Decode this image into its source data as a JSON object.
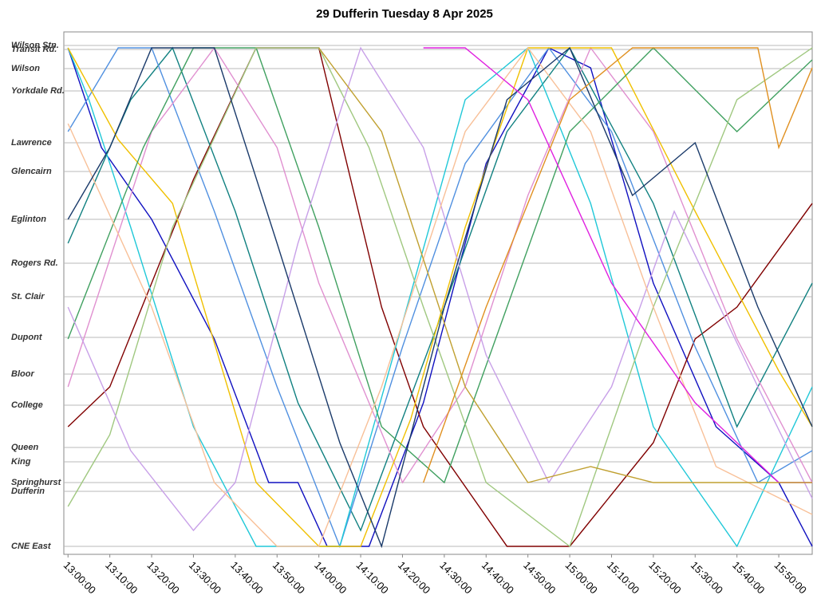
{
  "chart_data": {
    "type": "line",
    "title": "29 Dufferin Tuesday 8 Apr 2025",
    "xlim": [
      -1,
      178
    ],
    "ylim": [
      -10,
      645
    ],
    "grid": true,
    "xticks": [
      {
        "value": 0,
        "label": "13:00:00"
      },
      {
        "value": 10,
        "label": "13:10:00"
      },
      {
        "value": 20,
        "label": "13:20:00"
      },
      {
        "value": 30,
        "label": "13:30:00"
      },
      {
        "value": 40,
        "label": "13:40:00"
      },
      {
        "value": 50,
        "label": "13:50:00"
      },
      {
        "value": 60,
        "label": "14:00:00"
      },
      {
        "value": 70,
        "label": "14:10:00"
      },
      {
        "value": 80,
        "label": "14:20:00"
      },
      {
        "value": 90,
        "label": "14:30:00"
      },
      {
        "value": 100,
        "label": "14:40:00"
      },
      {
        "value": 110,
        "label": "14:50:00"
      },
      {
        "value": 120,
        "label": "15:00:00"
      },
      {
        "value": 130,
        "label": "15:10:00"
      },
      {
        "value": 140,
        "label": "15:20:00"
      },
      {
        "value": 150,
        "label": "15:30:00"
      },
      {
        "value": 160,
        "label": "15:40:00"
      },
      {
        "value": 170,
        "label": "15:50:00"
      }
    ],
    "yticks": [
      {
        "value": 628,
        "label": "Wilson Stn."
      },
      {
        "value": 623,
        "label": "Transit Rd."
      },
      {
        "value": 599,
        "label": "Wilson"
      },
      {
        "value": 571,
        "label": "Yorkdale Rd."
      },
      {
        "value": 506,
        "label": "Lawrence"
      },
      {
        "value": 470,
        "label": "Glencairn"
      },
      {
        "value": 410,
        "label": "Eglinton"
      },
      {
        "value": 355,
        "label": "Rogers Rd."
      },
      {
        "value": 313,
        "label": "St. Clair"
      },
      {
        "value": 262,
        "label": "Dupont"
      },
      {
        "value": 216,
        "label": "Bloor"
      },
      {
        "value": 177,
        "label": "College"
      },
      {
        "value": 124,
        "label": "Queen"
      },
      {
        "value": 106,
        "label": "King"
      },
      {
        "value": 80,
        "label": "Springhurst"
      },
      {
        "value": 69,
        "label": "Dufferin"
      },
      {
        "value": 0,
        "label": "CNE East"
      }
    ],
    "series": [
      {
        "color": "#1010c0",
        "x": [
          0,
          8,
          20,
          35,
          48,
          55,
          62,
          72,
          85,
          100,
          115,
          125,
          140,
          155,
          170,
          178
        ],
        "values": [
          625,
          500,
          410,
          260,
          80,
          80,
          0,
          0,
          180,
          480,
          625,
          600,
          330,
          150,
          80,
          0
        ]
      },
      {
        "color": "#800000",
        "x": [
          0,
          10,
          30,
          45,
          60,
          75,
          85,
          105,
          120,
          140,
          150,
          160,
          178
        ],
        "values": [
          150,
          200,
          460,
          625,
          625,
          300,
          150,
          0,
          0,
          130,
          260,
          300,
          430
        ]
      },
      {
        "color": "#108080",
        "x": [
          0,
          15,
          25,
          40,
          55,
          70,
          90,
          105,
          120,
          140,
          160,
          178
        ],
        "values": [
          380,
          560,
          625,
          420,
          180,
          20,
          300,
          520,
          625,
          430,
          150,
          330
        ]
      },
      {
        "color": "#5090e0",
        "x": [
          0,
          12,
          20,
          35,
          50,
          65,
          80,
          95,
          115,
          130,
          150,
          165,
          178
        ],
        "values": [
          520,
          625,
          625,
          420,
          200,
          0,
          250,
          480,
          625,
          520,
          250,
          80,
          120
        ]
      },
      {
        "color": "#20c8d8",
        "x": [
          0,
          5,
          15,
          30,
          45,
          65,
          80,
          95,
          110,
          125,
          140,
          160,
          178
        ],
        "values": [
          625,
          560,
          400,
          150,
          0,
          0,
          280,
          560,
          625,
          430,
          150,
          0,
          200
        ]
      },
      {
        "color": "#e090d0",
        "x": [
          0,
          20,
          35,
          50,
          60,
          80,
          95,
          110,
          125,
          140,
          160,
          178
        ],
        "values": [
          200,
          520,
          625,
          500,
          330,
          80,
          200,
          440,
          625,
          520,
          260,
          80
        ]
      },
      {
        "color": "#f0c000",
        "x": [
          0,
          12,
          25,
          45,
          60,
          70,
          82,
          95,
          110,
          130,
          150,
          170,
          178
        ],
        "values": [
          625,
          510,
          430,
          80,
          0,
          0,
          160,
          400,
          625,
          625,
          420,
          220,
          150
        ]
      },
      {
        "color": "#40a060",
        "x": [
          0,
          18,
          30,
          45,
          60,
          75,
          90,
          105,
          120,
          140,
          160,
          178
        ],
        "values": [
          260,
          500,
          625,
          625,
          400,
          150,
          80,
          300,
          520,
          625,
          520,
          610
        ]
      },
      {
        "color": "#a0c880",
        "x": [
          0,
          10,
          25,
          45,
          60,
          72,
          85,
          100,
          120,
          140,
          160,
          178
        ],
        "values": [
          50,
          140,
          400,
          625,
          625,
          500,
          300,
          80,
          0,
          300,
          560,
          625
        ]
      },
      {
        "color": "#c8a0e8",
        "x": [
          0,
          15,
          30,
          40,
          55,
          70,
          85,
          100,
          115,
          130,
          145,
          165,
          178
        ],
        "values": [
          300,
          120,
          20,
          80,
          380,
          625,
          500,
          240,
          80,
          200,
          420,
          200,
          60
        ]
      },
      {
        "color": "#f8c098",
        "x": [
          0,
          20,
          35,
          50,
          60,
          75,
          95,
          110,
          125,
          140,
          155,
          178
        ],
        "values": [
          530,
          300,
          80,
          0,
          0,
          200,
          520,
          625,
          520,
          300,
          100,
          40
        ]
      },
      {
        "color": "#1a3a6a",
        "x": [
          0,
          10,
          20,
          35,
          50,
          65,
          75,
          90,
          105,
          120,
          135,
          150,
          165,
          178
        ],
        "values": [
          410,
          500,
          625,
          625,
          380,
          130,
          0,
          300,
          560,
          625,
          440,
          506,
          300,
          150
        ]
      },
      {
        "color": "#e020e0",
        "x": [
          85,
          95,
          110,
          130,
          150,
          170,
          178
        ],
        "values": [
          625,
          625,
          560,
          330,
          180,
          80,
          80
        ]
      },
      {
        "color": "#e09020",
        "x": [
          85,
          100,
          120,
          135,
          150,
          165,
          170,
          178
        ],
        "values": [
          80,
          300,
          560,
          625,
          625,
          625,
          500,
          600
        ]
      },
      {
        "color": "#c0a030",
        "x": [
          60,
          75,
          95,
          110,
          125,
          140,
          155,
          170,
          178
        ],
        "values": [
          625,
          520,
          200,
          80,
          100,
          80,
          80,
          80,
          80
        ]
      }
    ]
  }
}
